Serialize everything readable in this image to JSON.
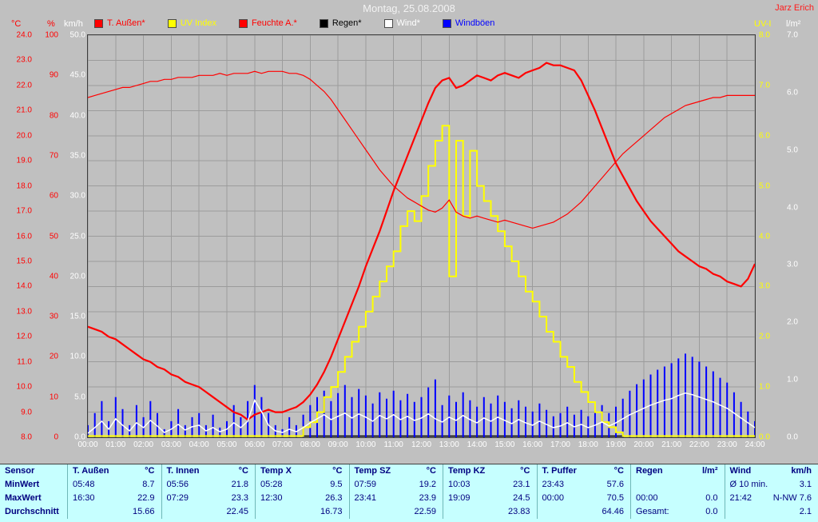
{
  "header": {
    "title": "Montag, 25.08.2008",
    "station": "Jarz Erich"
  },
  "legend": {
    "position": "top",
    "items": [
      {
        "label": "T. Außen*",
        "color": "#ff0000"
      },
      {
        "label": "UV Index",
        "color": "#ffff00"
      },
      {
        "label": "Feuchte A.*",
        "color": "#ff0000"
      },
      {
        "label": "Regen*",
        "color": "#000000"
      },
      {
        "label": "Wind*",
        "color": "#ffffff"
      },
      {
        "label": "Windböen",
        "color": "#0000ff"
      }
    ]
  },
  "axes": {
    "left": [
      {
        "unit": "°C",
        "color": "#ff0000",
        "range": [
          24,
          8
        ],
        "labels": [
          "24.0",
          "23.0",
          "22.0",
          "21.0",
          "20.0",
          "19.0",
          "18.0",
          "17.0",
          "16.0",
          "15.0",
          "14.0",
          "13.0",
          "12.0",
          "11.0",
          "10.0",
          "9.0",
          "8.0"
        ]
      },
      {
        "unit": "%",
        "color": "#ff0000",
        "range": [
          100,
          0
        ],
        "labels": [
          "100",
          "90",
          "80",
          "70",
          "60",
          "50",
          "40",
          "30",
          "20",
          "10",
          "0"
        ]
      },
      {
        "unit": "km/h",
        "color": "#ffffff",
        "range": [
          50,
          0
        ],
        "labels": [
          "50.0",
          "45.0",
          "40.0",
          "35.0",
          "30.0",
          "25.0",
          "20.0",
          "15.0",
          "10.0",
          "5.0",
          "0.0"
        ]
      }
    ],
    "right": [
      {
        "unit": "UV-I",
        "color": "#ffff00",
        "range": [
          8,
          0
        ],
        "labels": [
          "8.0",
          "7.0",
          "6.0",
          "5.0",
          "4.0",
          "3.0",
          "2.0",
          "1.0",
          "0.0"
        ]
      },
      {
        "unit": "l/m²",
        "color": "#ffffff",
        "range": [
          7,
          0
        ],
        "labels": [
          "7.0",
          "6.0",
          "5.0",
          "4.0",
          "3.0",
          "2.0",
          "1.0",
          "0.0"
        ]
      }
    ],
    "x_labels": [
      "00:00",
      "01:00",
      "02:00",
      "03:00",
      "04:00",
      "05:00",
      "06:00",
      "07:00",
      "08:00",
      "09:00",
      "10:00",
      "11:00",
      "12:00",
      "13:00",
      "14:00",
      "15:00",
      "16:00",
      "17:00",
      "18:00",
      "19:00",
      "20:00",
      "21:00",
      "22:00",
      "23:00",
      "24:00"
    ]
  },
  "chart_data": {
    "type": "line",
    "title": "Montag, 25.08.2008",
    "x_unit": "hours",
    "x_range": [
      0,
      24
    ],
    "x_step": 0.25,
    "grid": true,
    "series": [
      {
        "name": "Regen",
        "unit": "l/m²",
        "color": "#000000",
        "ylim": [
          0,
          7
        ],
        "width": 1.5,
        "constant": 0
      },
      {
        "name": "Windböen",
        "unit": "km/h",
        "color": "#0000ff",
        "ylim": [
          0,
          50
        ],
        "style": "bars",
        "values": [
          1.5,
          3.0,
          4.5,
          2.0,
          5.0,
          3.5,
          1.5,
          4.0,
          2.5,
          4.5,
          3.0,
          1.0,
          2.0,
          3.5,
          1.5,
          2.5,
          3.0,
          1.5,
          2.8,
          1.2,
          2.0,
          4.0,
          2.5,
          4.5,
          6.5,
          5.0,
          3.0,
          1.5,
          1.0,
          2.5,
          1.5,
          2.8,
          4.0,
          5.0,
          5.8,
          4.5,
          5.5,
          6.5,
          5.0,
          6.0,
          5.2,
          4.2,
          5.6,
          4.8,
          5.8,
          4.6,
          5.4,
          4.4,
          5.0,
          6.2,
          7.2,
          4.0,
          5.2,
          4.4,
          5.6,
          4.6,
          3.8,
          5.0,
          4.2,
          5.2,
          4.4,
          3.6,
          4.6,
          3.8,
          3.2,
          4.2,
          3.4,
          2.6,
          3.0,
          3.8,
          2.8,
          3.4,
          2.6,
          3.2,
          4.0,
          3.0,
          3.8,
          4.8,
          5.8,
          6.6,
          7.2,
          7.8,
          8.4,
          8.8,
          9.2,
          9.8,
          10.4,
          10.0,
          9.4,
          8.8,
          8.2,
          7.4,
          6.8,
          5.6,
          4.4,
          3.2,
          2.0
        ]
      },
      {
        "name": "UV Index",
        "unit": "UV-I",
        "color": "#ffff00",
        "ylim": [
          0,
          8
        ],
        "width": 2,
        "style": "step",
        "values": [
          0,
          0,
          0,
          0,
          0,
          0,
          0,
          0,
          0,
          0,
          0,
          0,
          0,
          0,
          0,
          0,
          0,
          0,
          0,
          0,
          0,
          0,
          0,
          0,
          0,
          0,
          0,
          0,
          0,
          0,
          0,
          0.2,
          0.3,
          0.5,
          0.8,
          1.0,
          1.3,
          1.6,
          1.9,
          2.2,
          2.5,
          2.8,
          3.1,
          3.4,
          3.7,
          4.2,
          4.5,
          4.3,
          4.8,
          5.4,
          5.9,
          6.2,
          3.2,
          5.9,
          4.4,
          5.7,
          5.0,
          4.7,
          4.4,
          4.1,
          3.8,
          3.5,
          3.2,
          2.9,
          2.7,
          2.4,
          2.1,
          1.9,
          1.6,
          1.4,
          1.1,
          0.9,
          0.7,
          0.5,
          0.3,
          0.2,
          0.1,
          0,
          0,
          0,
          0,
          0,
          0,
          0,
          0,
          0,
          0,
          0,
          0,
          0,
          0,
          0,
          0,
          0,
          0,
          0,
          0
        ]
      },
      {
        "name": "Feuchte A.",
        "unit": "%",
        "color": "#ff0000",
        "ylim": [
          0,
          100
        ],
        "width": 1.2,
        "values": [
          84.5,
          85,
          85.5,
          86,
          86.5,
          87,
          87,
          87.5,
          88,
          88.5,
          88.5,
          89,
          89,
          89.5,
          89.5,
          89.5,
          90,
          90,
          90,
          90.5,
          90,
          90.5,
          90.5,
          90.5,
          91,
          90.5,
          91,
          91,
          91,
          90.5,
          90.5,
          90,
          89,
          87.5,
          86,
          84,
          81.5,
          79,
          76.5,
          74,
          71.5,
          69,
          66.5,
          64.5,
          62.5,
          61,
          59.5,
          58.5,
          57.5,
          56.5,
          56,
          57,
          59,
          56,
          55,
          54.5,
          55,
          54.5,
          54,
          53.5,
          54,
          53.5,
          53,
          52.5,
          52,
          52.5,
          53,
          53.5,
          54.5,
          55.5,
          57,
          58.5,
          60.5,
          62.5,
          64.5,
          66.5,
          68.5,
          70.5,
          72,
          73.5,
          75,
          76.5,
          78,
          79.5,
          80.5,
          81.5,
          82.5,
          83,
          83.5,
          84,
          84.5,
          84.5,
          85,
          85,
          85,
          85,
          85
        ]
      },
      {
        "name": "T. Außen",
        "unit": "°C",
        "color": "#ff0000",
        "ylim": [
          8,
          24
        ],
        "width": 2.2,
        "values": [
          12.4,
          12.3,
          12.2,
          12.0,
          11.9,
          11.7,
          11.5,
          11.3,
          11.1,
          11.0,
          10.8,
          10.7,
          10.5,
          10.4,
          10.2,
          10.1,
          10.0,
          9.8,
          9.6,
          9.4,
          9.2,
          9.0,
          8.9,
          8.7,
          8.9,
          9.0,
          9.1,
          9.0,
          9.0,
          9.1,
          9.2,
          9.4,
          9.7,
          10.1,
          10.6,
          11.2,
          11.9,
          12.6,
          13.3,
          14.0,
          14.8,
          15.5,
          16.2,
          17.0,
          17.8,
          18.5,
          19.2,
          19.9,
          20.6,
          21.3,
          21.9,
          22.2,
          22.3,
          21.9,
          22.0,
          22.2,
          22.4,
          22.3,
          22.2,
          22.4,
          22.5,
          22.4,
          22.3,
          22.5,
          22.6,
          22.7,
          22.9,
          22.8,
          22.8,
          22.7,
          22.6,
          22.2,
          21.6,
          21.0,
          20.3,
          19.6,
          18.9,
          18.4,
          17.9,
          17.4,
          17.0,
          16.6,
          16.3,
          16.0,
          15.7,
          15.4,
          15.2,
          15.0,
          14.8,
          14.7,
          14.5,
          14.4,
          14.2,
          14.1,
          14.0,
          14.3,
          14.9
        ]
      },
      {
        "name": "Wind",
        "unit": "km/h",
        "color": "#ffffff",
        "ylim": [
          0,
          50
        ],
        "width": 1.5,
        "values": [
          0.5,
          1.2,
          2.0,
          1.0,
          2.3,
          1.5,
          0.8,
          1.8,
          1.2,
          2.1,
          1.4,
          0.6,
          1.0,
          1.6,
          0.9,
          1.3,
          1.5,
          0.8,
          1.2,
          0.7,
          1.0,
          1.8,
          1.2,
          2.0,
          4.6,
          3.2,
          1.5,
          0.8,
          0.6,
          1.0,
          0.7,
          1.2,
          1.8,
          2.3,
          2.8,
          2.2,
          2.6,
          3.0,
          2.4,
          2.9,
          2.5,
          2.0,
          2.7,
          2.3,
          2.8,
          2.2,
          2.6,
          2.1,
          2.4,
          2.9,
          2.3,
          1.9,
          2.5,
          2.1,
          2.7,
          2.2,
          1.8,
          2.4,
          2.0,
          2.5,
          2.1,
          1.7,
          2.2,
          1.8,
          1.5,
          2.0,
          1.6,
          1.2,
          1.4,
          1.8,
          1.3,
          1.6,
          1.2,
          1.5,
          1.9,
          1.4,
          1.8,
          2.3,
          2.8,
          3.2,
          3.6,
          4.0,
          4.3,
          4.6,
          4.8,
          5.2,
          5.5,
          5.3,
          5.0,
          4.7,
          4.4,
          4.0,
          3.6,
          3.0,
          2.4,
          1.8,
          1.2
        ]
      }
    ]
  },
  "table": {
    "row_labels": [
      "Sensor",
      "MinWert",
      "MaxWert",
      "Durchschnitt"
    ],
    "columns": [
      {
        "name": "T. Außen",
        "unit": "°C",
        "min": [
          "05:48",
          "8.7"
        ],
        "max": [
          "16:30",
          "22.9"
        ],
        "avg": [
          "",
          "15.66"
        ]
      },
      {
        "name": "T. Innen",
        "unit": "°C",
        "min": [
          "05:56",
          "21.8"
        ],
        "max": [
          "07:29",
          "23.3"
        ],
        "avg": [
          "",
          "22.45"
        ]
      },
      {
        "name": "Temp X",
        "unit": "°C",
        "min": [
          "05:28",
          "9.5"
        ],
        "max": [
          "12:30",
          "26.3"
        ],
        "avg": [
          "",
          "16.73"
        ]
      },
      {
        "name": "Temp SZ",
        "unit": "°C",
        "min": [
          "07:59",
          "19.2"
        ],
        "max": [
          "23:41",
          "23.9"
        ],
        "avg": [
          "",
          "22.59"
        ]
      },
      {
        "name": "Temp KZ",
        "unit": "°C",
        "min": [
          "10:03",
          "23.1"
        ],
        "max": [
          "19:09",
          "24.5"
        ],
        "avg": [
          "",
          "23.83"
        ]
      },
      {
        "name": "T. Puffer",
        "unit": "°C",
        "min": [
          "23:43",
          "57.6"
        ],
        "max": [
          "00:00",
          "70.5"
        ],
        "avg": [
          "",
          "64.46"
        ]
      },
      {
        "name": "Regen",
        "unit": "l/m²",
        "min": [
          "",
          ""
        ],
        "max": [
          "00:00",
          "0.0"
        ],
        "avg": [
          "Gesamt:",
          "0.0"
        ]
      },
      {
        "name": "Wind",
        "unit": "km/h",
        "min": [
          "Ø 10 min.",
          "3.1"
        ],
        "max": [
          "21:42",
          "N-NW 7.6"
        ],
        "avg": [
          "",
          "2.1"
        ]
      }
    ]
  }
}
